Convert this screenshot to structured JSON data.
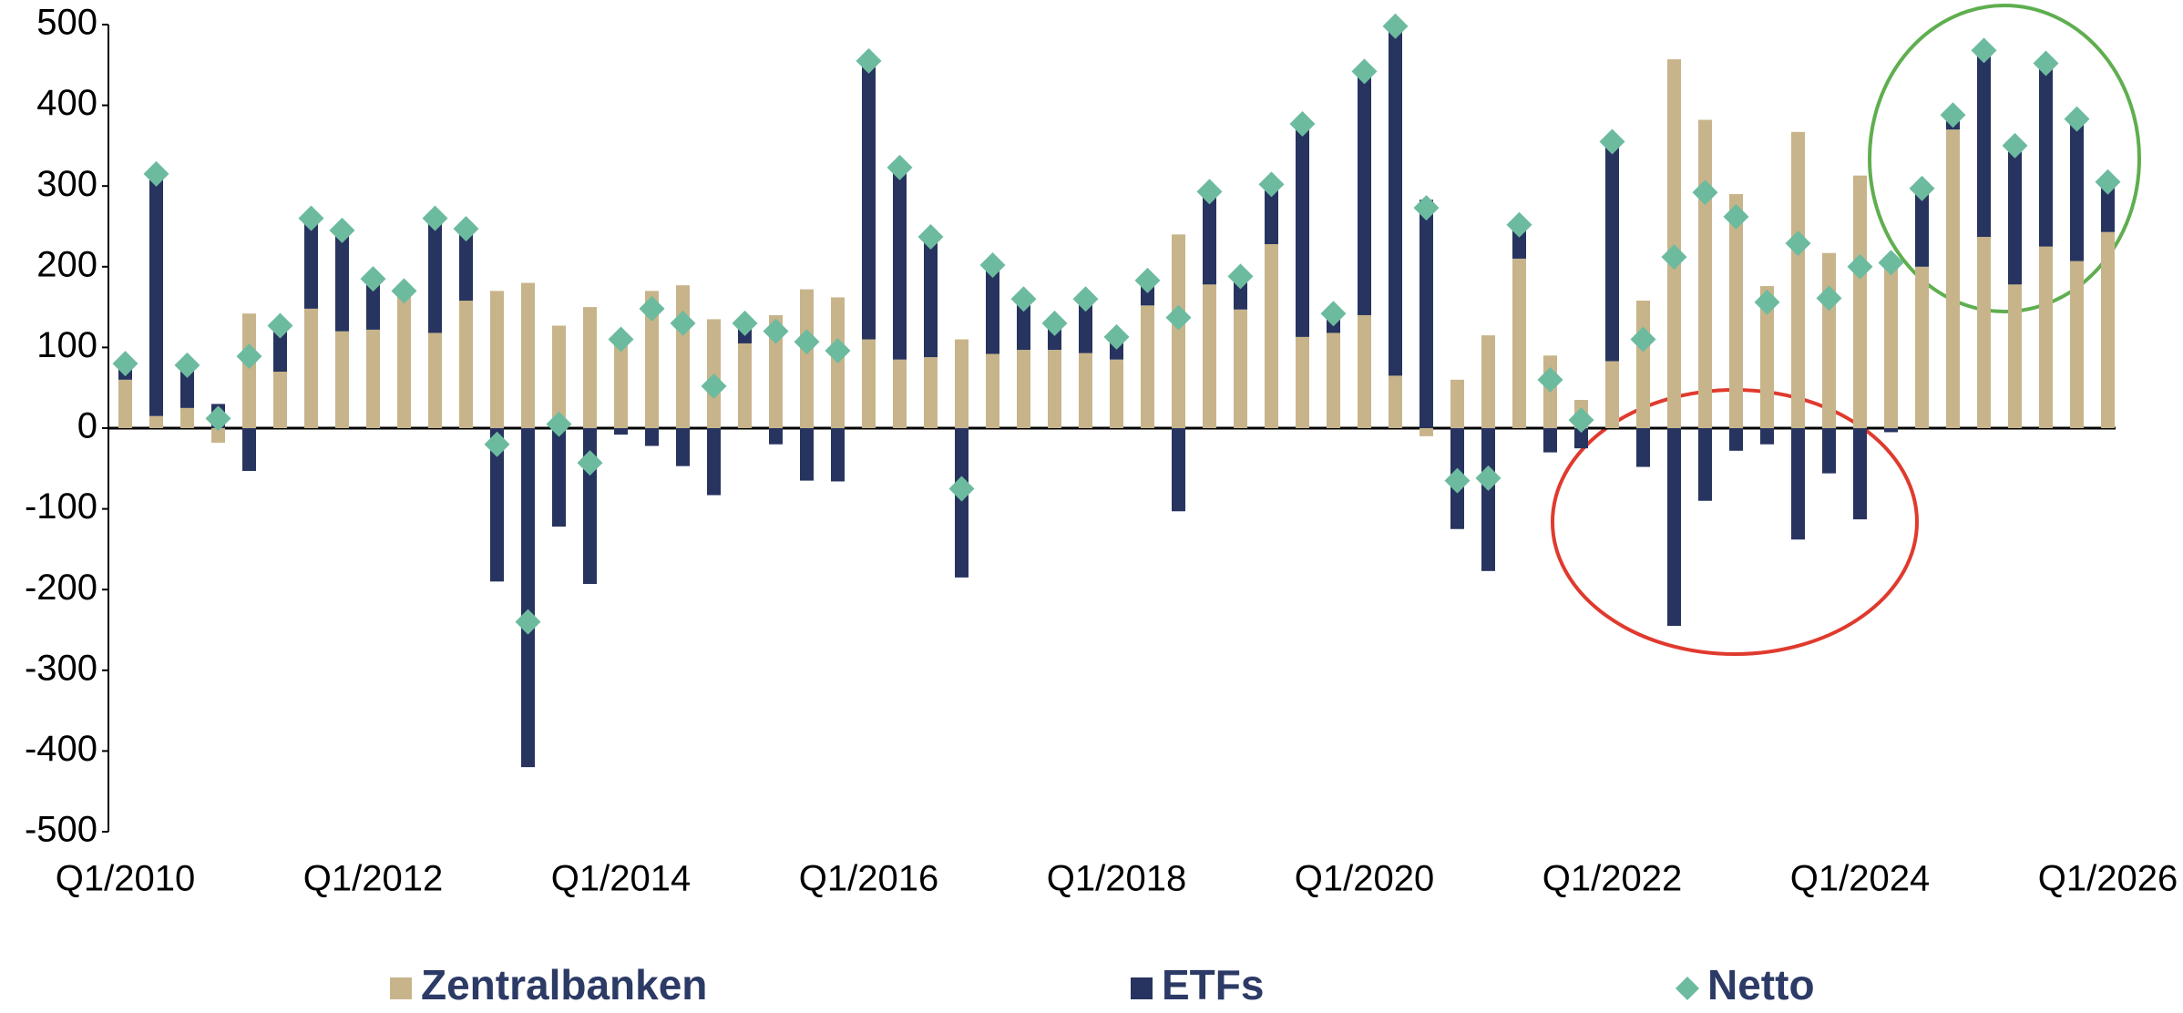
{
  "chart_data": {
    "type": "bar",
    "categories": [
      "Q1/2010",
      null,
      null,
      null,
      null,
      null,
      null,
      null,
      "Q1/2012",
      null,
      null,
      null,
      null,
      null,
      null,
      null,
      "Q1/2014",
      null,
      null,
      null,
      null,
      null,
      null,
      null,
      "Q1/2016",
      null,
      null,
      null,
      null,
      null,
      null,
      null,
      "Q1/2018",
      null,
      null,
      null,
      null,
      null,
      null,
      null,
      "Q1/2020",
      null,
      null,
      null,
      null,
      null,
      null,
      null,
      "Q1/2022",
      null,
      null,
      null,
      null,
      null,
      null,
      null,
      "Q1/2024",
      null,
      null,
      null,
      null,
      null,
      null,
      null,
      "Q1/2026"
    ],
    "series": [
      {
        "name": "Zentralbanken",
        "color": "#c8b48a",
        "values": [
          60,
          15,
          25,
          -18,
          142,
          70,
          148,
          120,
          122,
          165,
          118,
          158,
          170,
          180,
          127,
          150,
          118,
          170,
          177,
          135,
          105,
          140,
          172,
          162,
          110,
          85,
          88,
          110,
          92,
          97,
          97,
          93,
          85,
          152,
          240,
          178,
          147,
          228,
          113,
          118,
          140,
          65,
          -10,
          60,
          115,
          210,
          90,
          35,
          83,
          158,
          457,
          382,
          290,
          176,
          367,
          217,
          313,
          210,
          200,
          370,
          237,
          178,
          225,
          207,
          243
        ]
      },
      {
        "name": "ETFs",
        "color": "#27345f",
        "values": [
          20,
          300,
          53,
          30,
          -53,
          57,
          112,
          125,
          63,
          5,
          142,
          89,
          -190,
          -420,
          -122,
          -193,
          -8,
          -22,
          -47,
          -83,
          25,
          -20,
          -65,
          -66,
          345,
          238,
          149,
          -185,
          110,
          63,
          33,
          67,
          28,
          31,
          -103,
          115,
          41,
          74,
          264,
          24,
          302,
          433,
          283,
          -125,
          -177,
          42,
          -30,
          -25,
          272,
          -48,
          -245,
          -90,
          -28,
          -20,
          -138,
          -56,
          -113,
          -5,
          97,
          18,
          231,
          172,
          227,
          176,
          62
        ]
      },
      {
        "name": "Netto",
        "color": "#6dbb9f",
        "marker": "diamond",
        "values": [
          80,
          315,
          78,
          12,
          89,
          127,
          260,
          245,
          185,
          170,
          260,
          247,
          -20,
          -240,
          5,
          -43,
          110,
          148,
          130,
          52,
          130,
          120,
          107,
          96,
          455,
          323,
          237,
          -75,
          202,
          160,
          130,
          160,
          113,
          183,
          137,
          293,
          188,
          302,
          377,
          142,
          442,
          498,
          273,
          -65,
          -62,
          252,
          60,
          10,
          355,
          110,
          212,
          292,
          262,
          156,
          229,
          161,
          200,
          205,
          297,
          388,
          468,
          350,
          452,
          383,
          305
        ]
      }
    ],
    "ylim": [
      -500,
      500
    ],
    "yticks": [
      -500,
      -400,
      -300,
      -200,
      -100,
      0,
      100,
      200,
      300,
      400,
      500
    ]
  }
}
